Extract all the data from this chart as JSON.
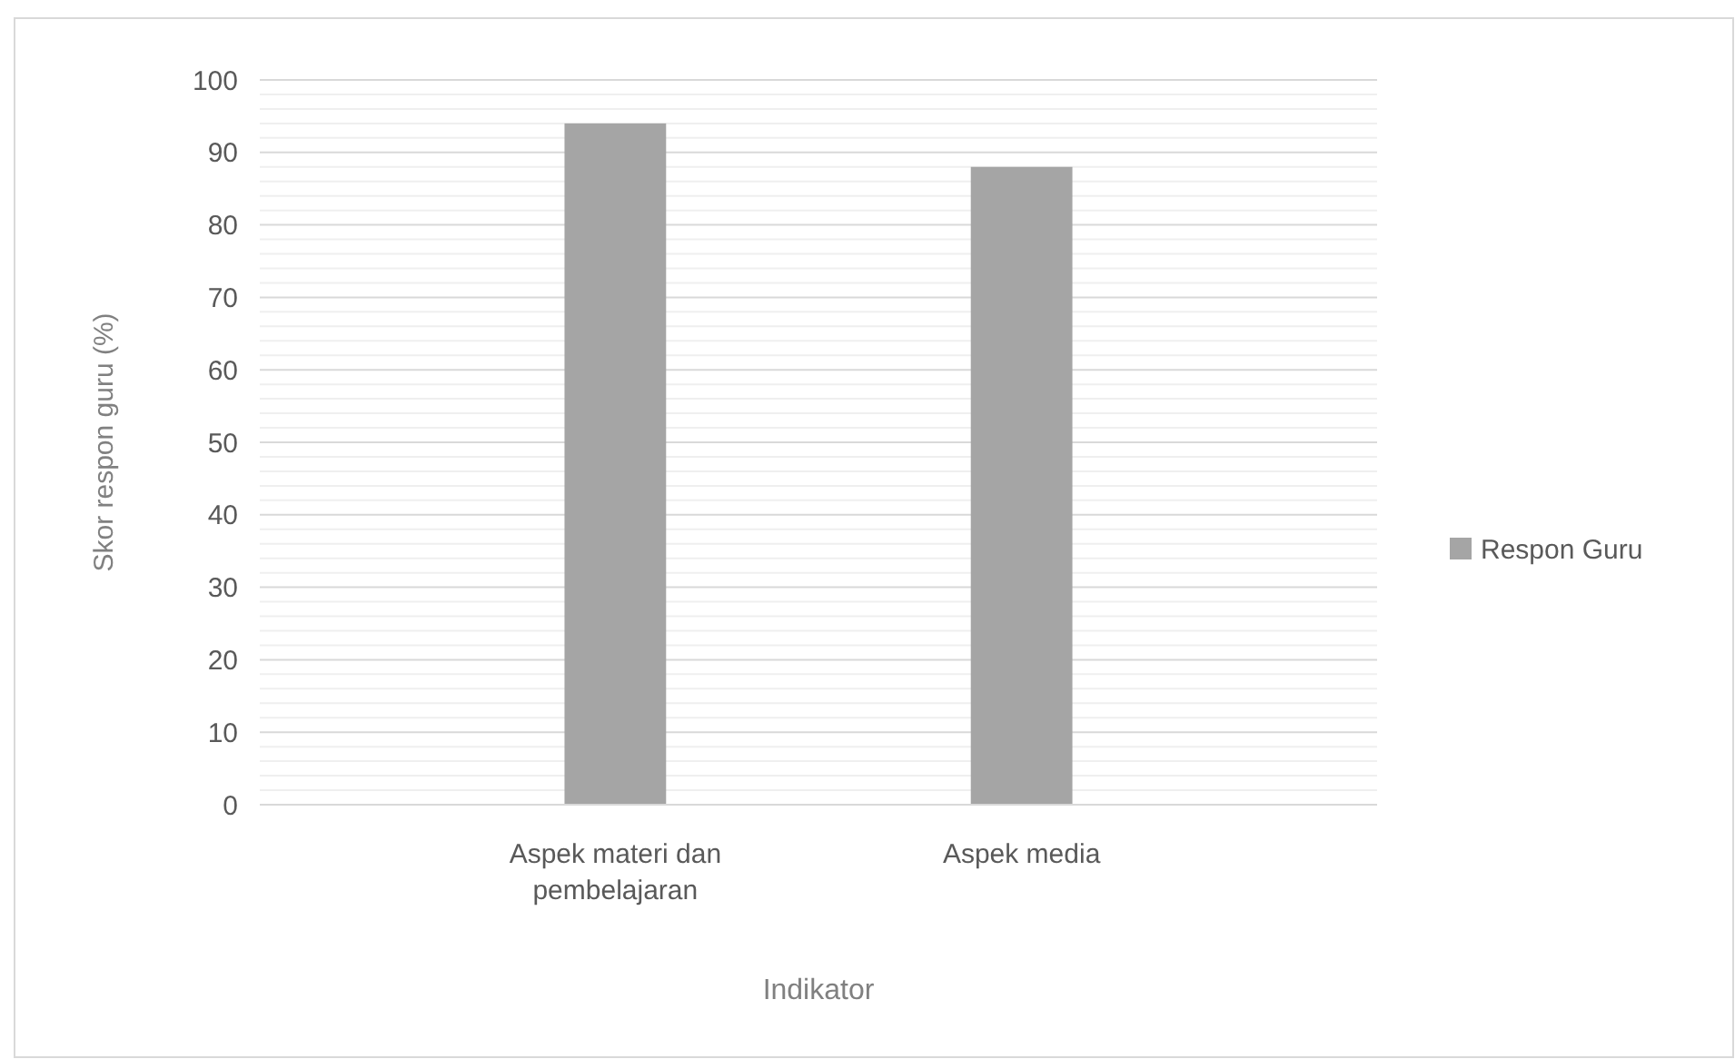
{
  "chart_data": {
    "type": "bar",
    "xlabel": "Indikator",
    "ylabel": "Skor respon guru (%)",
    "categories": [
      "Aspek materi dan pembelajaran",
      "Aspek media"
    ],
    "series": [
      {
        "name": "Respon Guru",
        "color": "#a5a5a5",
        "values": [
          94,
          88
        ]
      }
    ],
    "ylim": [
      0,
      100
    ],
    "yticks": [
      0,
      {
        "value": 2,
        "label": null
      },
      {
        "value": 4,
        "label": null
      },
      {
        "value": 6,
        "label": null
      },
      {
        "value": 8,
        "label": null
      },
      10,
      {
        "value": 12,
        "label": null
      },
      {
        "value": 14,
        "label": null
      },
      {
        "value": 16,
        "label": null
      },
      {
        "value": 18,
        "label": null
      },
      20,
      {
        "value": 22,
        "label": null
      },
      {
        "value": 24,
        "label": null
      },
      {
        "value": 26,
        "label": null
      },
      {
        "value": 28,
        "label": null
      },
      30,
      {
        "value": 32,
        "label": null
      },
      {
        "value": 34,
        "label": null
      },
      {
        "value": 36,
        "label": null
      },
      {
        "value": 38,
        "label": null
      },
      40,
      {
        "value": 42,
        "label": null
      },
      {
        "value": 44,
        "label": null
      },
      {
        "value": 46,
        "label": null
      },
      {
        "value": 48,
        "label": null
      },
      50,
      {
        "value": 52,
        "label": null
      },
      {
        "value": 54,
        "label": null
      },
      {
        "value": 56,
        "label": null
      },
      {
        "value": 58,
        "label": null
      },
      60,
      {
        "value": 62,
        "label": null
      },
      {
        "value": 64,
        "label": null
      },
      {
        "value": 66,
        "label": null
      },
      {
        "value": 68,
        "label": null
      },
      70,
      {
        "value": 72,
        "label": null
      },
      {
        "value": 74,
        "label": null
      },
      {
        "value": 76,
        "label": null
      },
      {
        "value": 78,
        "label": null
      },
      80,
      {
        "value": 82,
        "label": null
      },
      {
        "value": 84,
        "label": null
      },
      {
        "value": 86,
        "label": null
      },
      {
        "value": 88,
        "label": null
      },
      90,
      {
        "value": 92,
        "label": null
      },
      {
        "value": 94,
        "label": null
      },
      {
        "value": 96,
        "label": null
      },
      {
        "value": 98,
        "label": null
      },
      100
    ],
    "grid": "y",
    "legend": "right"
  }
}
